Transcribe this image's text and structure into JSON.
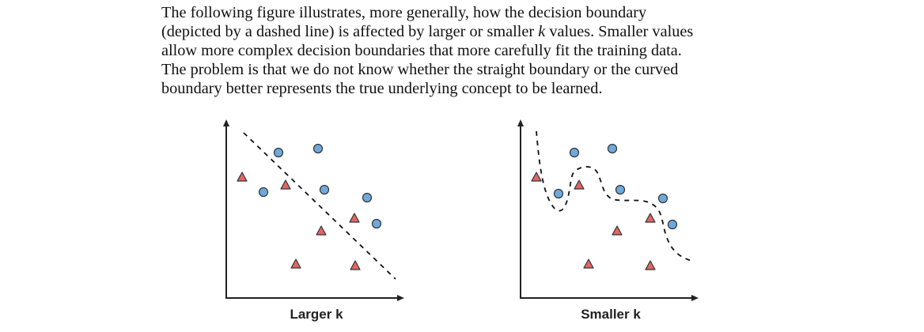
{
  "paragraph": {
    "line1": "The following figure illustrates, more generally, how the decision boundary",
    "line2": "(depicted by a dashed line) is affected by larger or smaller ",
    "line2_k": "k",
    "line2_end": " values. Smaller values",
    "line3": "allow more complex decision boundaries that more carefully fit the training data.",
    "line4": "The problem is that we do not know whether the straight boundary or the curved",
    "line5": "boundary better represents the true underlying concept to be learned."
  },
  "figures": [
    {
      "caption": "Larger k"
    },
    {
      "caption": "Smaller k"
    }
  ],
  "colors": {
    "circle_fill": "#6fa8dc",
    "triangle_fill": "#e06666",
    "axis": "#222222"
  }
}
